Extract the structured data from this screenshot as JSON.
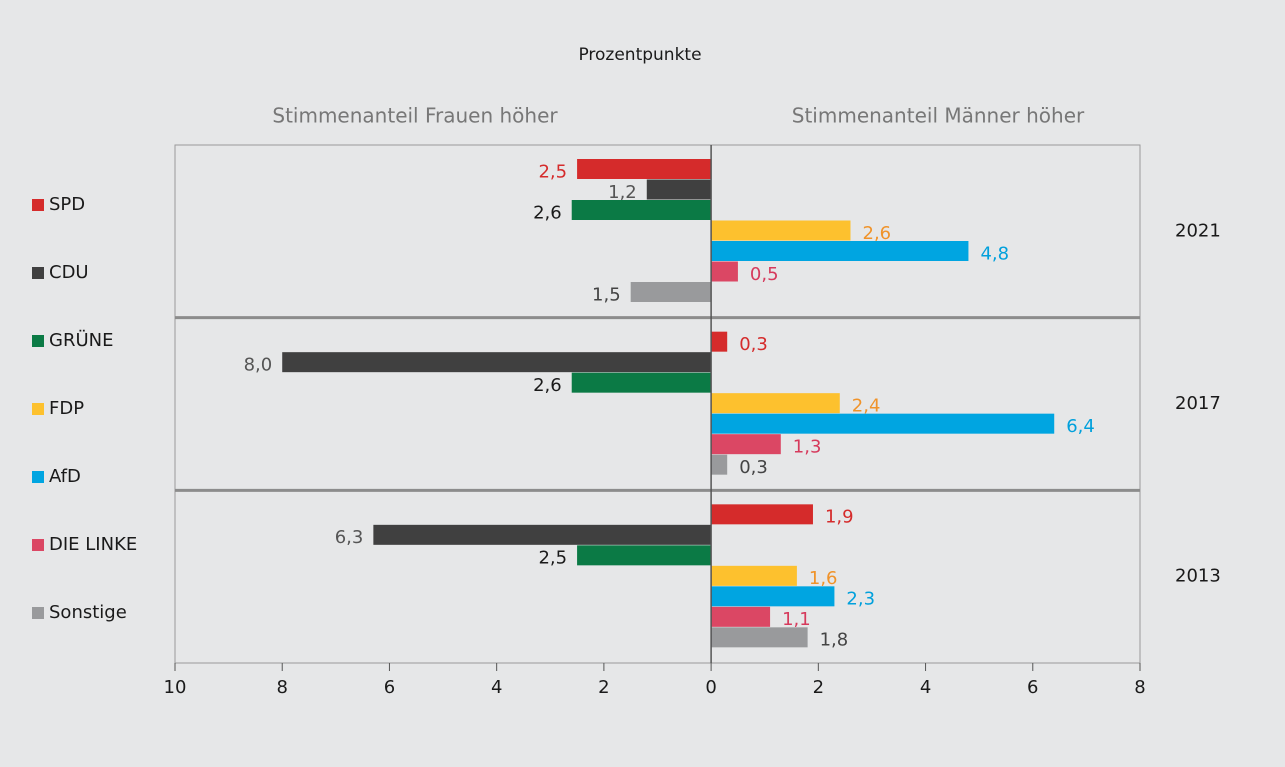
{
  "chart_data": {
    "type": "diverging-bar",
    "subtitle": "Prozentpunkte",
    "left_label": "Stimmenanteil Frauen höher",
    "right_label": "Stimmenanteil Männer höher",
    "categories": [
      "2021",
      "2017",
      "2013"
    ],
    "series": [
      {
        "name": "SPD",
        "color": "#d52b2b",
        "label_color": "#d52b2b",
        "values": [
          -2.5,
          0.3,
          1.9
        ],
        "value_labels": [
          "2,5",
          "0,3",
          "1,9"
        ]
      },
      {
        "name": "CDU",
        "color": "#404040",
        "label_color": "#555555",
        "values": [
          -1.2,
          -8.0,
          -6.3
        ],
        "value_labels": [
          "1,2",
          "8,0",
          "6,3"
        ]
      },
      {
        "name": "GRÜNE",
        "color": "#0b7a45",
        "label_color": "#1a1a1a",
        "values": [
          -2.6,
          -2.6,
          -2.5
        ],
        "value_labels": [
          "2,6",
          "2,6",
          "2,5"
        ]
      },
      {
        "name": "FDP",
        "color": "#fdc12e",
        "label_color": "#f0932a",
        "values": [
          2.6,
          2.4,
          1.6
        ],
        "value_labels": [
          "2,6",
          "2,4",
          "1,6"
        ]
      },
      {
        "name": "AfD",
        "color": "#00a5e1",
        "label_color": "#00a0dc",
        "values": [
          4.8,
          6.4,
          2.3
        ],
        "value_labels": [
          "4,8",
          "6,4",
          "2,3"
        ]
      },
      {
        "name": "DIE LINKE",
        "color": "#db4764",
        "label_color": "#d63a5c",
        "values": [
          0.5,
          1.3,
          1.1
        ],
        "value_labels": [
          "0,5",
          "1,3",
          "1,1"
        ]
      },
      {
        "name": "Sonstige",
        "color": "#999a9c",
        "label_color": "#444444",
        "values": [
          -1.5,
          0.3,
          1.8
        ],
        "value_labels": [
          "1,5",
          "0,3",
          "1,8"
        ]
      }
    ],
    "xlim": [
      -10,
      8
    ],
    "xticks": [
      {
        "value": -10,
        "label": "10"
      },
      {
        "value": -8,
        "label": "8"
      },
      {
        "value": -6,
        "label": "6"
      },
      {
        "value": -4,
        "label": "4"
      },
      {
        "value": -2,
        "label": "2"
      },
      0,
      2,
      4,
      6,
      8
    ]
  }
}
